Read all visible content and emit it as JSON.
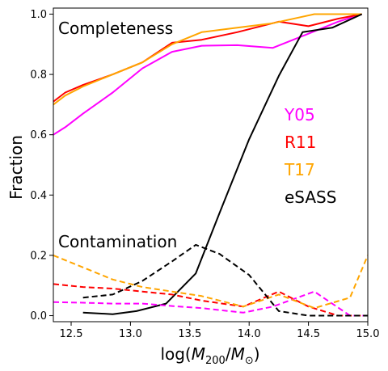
{
  "chart_data": {
    "type": "line",
    "xlabel": "log(M200/M⊙)",
    "ylabel": "Fraction",
    "xlim": [
      12.35,
      15.0
    ],
    "ylim": [
      -0.02,
      1.02
    ],
    "xticks": [
      12.5,
      13.0,
      13.5,
      14.0,
      14.5,
      15.0
    ],
    "xtick_labels": [
      "12.5",
      "13.0",
      "13.5",
      "14.0",
      "14.5",
      "15.0"
    ],
    "yticks": [
      0.0,
      0.2,
      0.4,
      0.6,
      0.8,
      1.0
    ],
    "ytick_labels": [
      "0.0",
      "0.2",
      "0.4",
      "0.6",
      "0.8",
      "1.0"
    ],
    "grid": false,
    "annotations": {
      "completeness": "Completeness",
      "contamination": "Contamination"
    },
    "legend_labels": [
      {
        "text": "Y05",
        "color": "#ff00ff"
      },
      {
        "text": "R11",
        "color": "#ff0000"
      },
      {
        "text": "T17",
        "color": "#ffa500"
      },
      {
        "text": "eSASS",
        "color": "#000000"
      }
    ],
    "series": [
      {
        "name": "Y05",
        "metric": "completeness",
        "color": "#ff00ff",
        "style": "solid",
        "x": [
          12.35,
          12.45,
          12.6,
          12.85,
          13.1,
          13.35,
          13.6,
          13.9,
          14.2,
          14.5,
          14.75,
          14.95
        ],
        "y": [
          0.6,
          0.625,
          0.67,
          0.74,
          0.82,
          0.875,
          0.895,
          0.897,
          0.888,
          0.935,
          0.975,
          1.0
        ]
      },
      {
        "name": "R11",
        "metric": "completeness",
        "color": "#ff0000",
        "style": "solid",
        "x": [
          12.35,
          12.45,
          12.6,
          12.85,
          13.1,
          13.35,
          13.6,
          13.9,
          14.25,
          14.5,
          14.75,
          14.95
        ],
        "y": [
          0.71,
          0.74,
          0.765,
          0.8,
          0.84,
          0.905,
          0.915,
          0.94,
          0.975,
          0.96,
          0.985,
          1.0
        ]
      },
      {
        "name": "T17",
        "metric": "completeness",
        "color": "#ffa500",
        "style": "solid",
        "x": [
          12.35,
          12.45,
          12.6,
          12.85,
          13.1,
          13.35,
          13.6,
          13.9,
          14.2,
          14.55,
          14.8,
          14.95
        ],
        "y": [
          0.7,
          0.73,
          0.76,
          0.8,
          0.84,
          0.9,
          0.94,
          0.955,
          0.97,
          1.0,
          1.0,
          1.0
        ]
      },
      {
        "name": "eSASS",
        "metric": "completeness",
        "color": "#000000",
        "style": "solid",
        "x": [
          12.6,
          12.85,
          13.05,
          13.3,
          13.55,
          13.75,
          14.0,
          14.25,
          14.45,
          14.7,
          14.95
        ],
        "y": [
          0.01,
          0.005,
          0.015,
          0.04,
          0.14,
          0.34,
          0.585,
          0.795,
          0.94,
          0.955,
          1.0
        ]
      },
      {
        "name": "Y05",
        "metric": "contamination",
        "color": "#ff00ff",
        "style": "dashed",
        "x": [
          12.35,
          12.6,
          12.85,
          13.1,
          13.35,
          13.6,
          13.95,
          14.2,
          14.55,
          14.85,
          15.0
        ],
        "y": [
          0.045,
          0.043,
          0.04,
          0.04,
          0.032,
          0.025,
          0.01,
          0.03,
          0.08,
          0.0,
          0.0
        ]
      },
      {
        "name": "R11",
        "metric": "contamination",
        "color": "#ff0000",
        "style": "dashed",
        "x": [
          12.35,
          12.6,
          12.85,
          13.1,
          13.35,
          13.6,
          13.95,
          14.25,
          14.5,
          14.75,
          15.0
        ],
        "y": [
          0.105,
          0.095,
          0.09,
          0.08,
          0.07,
          0.05,
          0.03,
          0.08,
          0.03,
          0.0,
          0.0
        ]
      },
      {
        "name": "T17",
        "metric": "contamination",
        "color": "#ffa500",
        "style": "dashed",
        "x": [
          12.35,
          12.6,
          12.85,
          13.1,
          13.35,
          13.6,
          13.95,
          14.25,
          14.55,
          14.85,
          15.0
        ],
        "y": [
          0.2,
          0.16,
          0.12,
          0.095,
          0.08,
          0.065,
          0.03,
          0.07,
          0.025,
          0.06,
          0.2
        ]
      },
      {
        "name": "eSASS",
        "metric": "contamination",
        "color": "#000000",
        "style": "dashed",
        "x": [
          12.6,
          12.85,
          13.1,
          13.35,
          13.55,
          13.75,
          14.0,
          14.25,
          14.5,
          14.75,
          15.0
        ],
        "y": [
          0.06,
          0.07,
          0.115,
          0.18,
          0.235,
          0.205,
          0.135,
          0.015,
          0.0,
          0.0,
          0.0
        ]
      }
    ]
  }
}
